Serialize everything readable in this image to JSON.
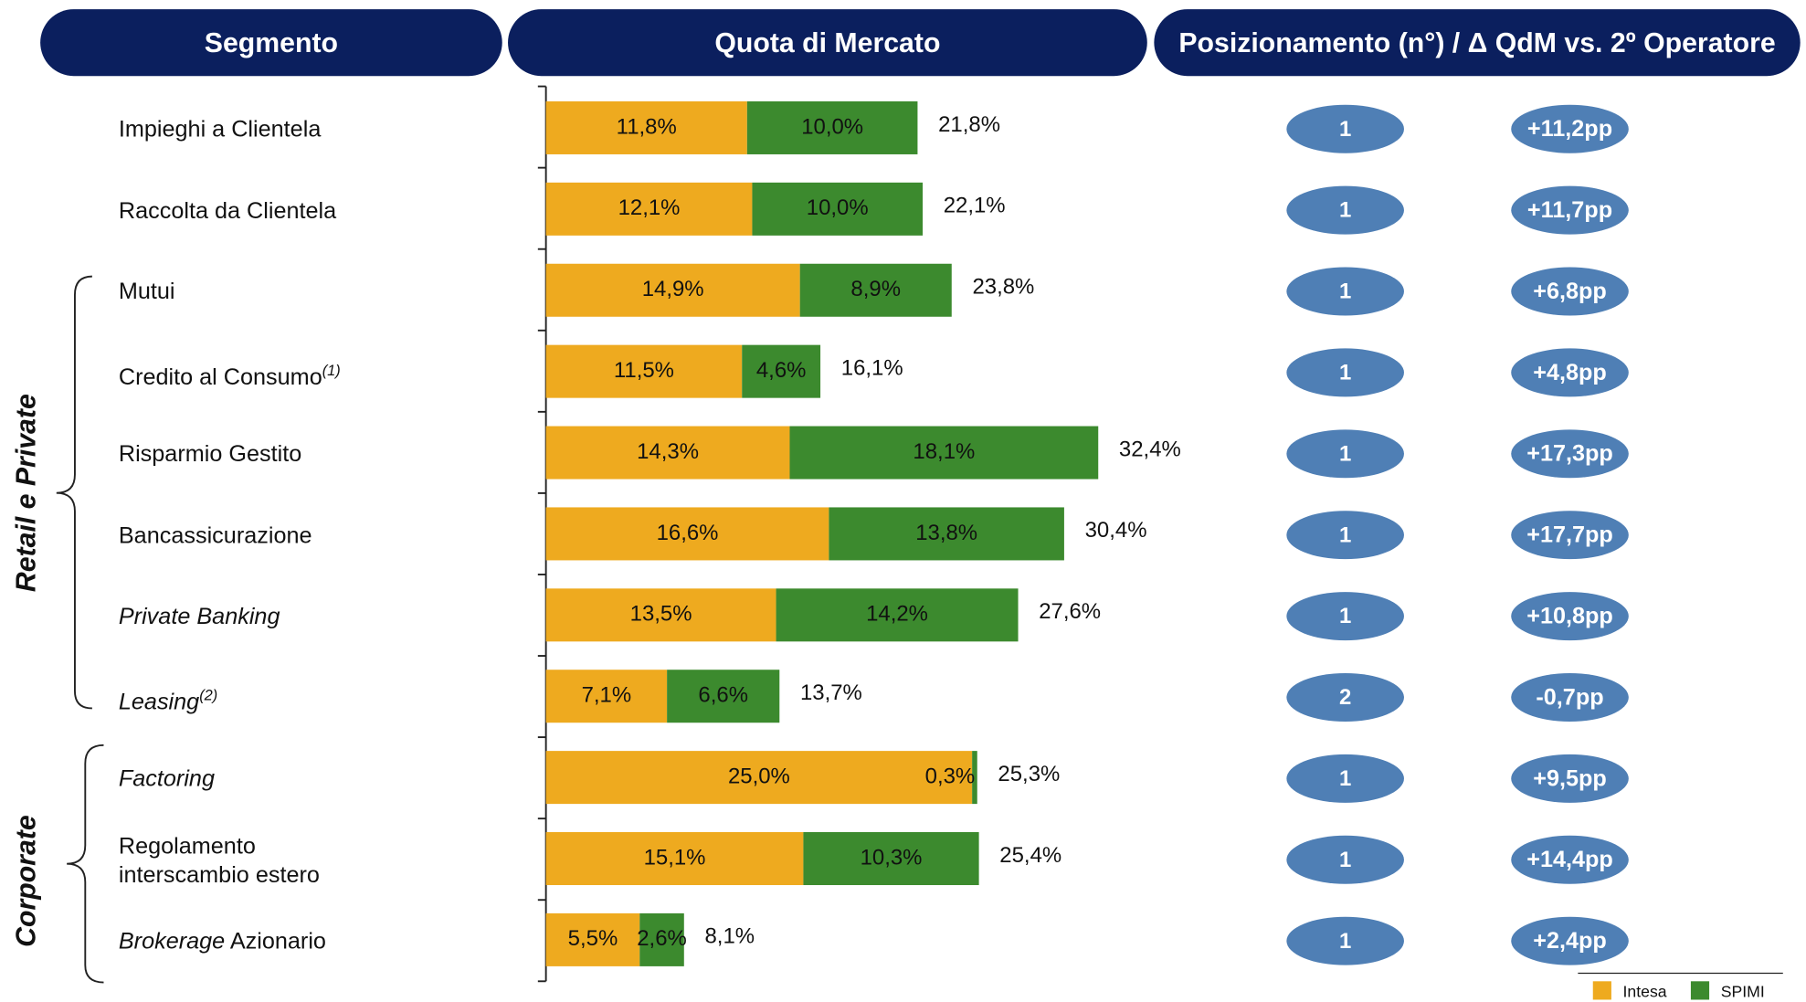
{
  "chart_data": {
    "type": "bar",
    "orientation": "horizontal",
    "stacked": true,
    "headers": [
      "Segmento",
      "Quota di Mercato",
      "Posizionamento (n°) / Δ QdM vs. 2º Operatore"
    ],
    "groups": [
      "Retail e Private",
      "Corporate"
    ],
    "categories": [
      [
        {
          "text": "Impieghi a Clientela"
        }
      ],
      [
        {
          "text": "Raccolta da Clientela"
        }
      ],
      [
        {
          "text": "Mutui"
        }
      ],
      [
        {
          "text": "Credito al Consumo"
        },
        {
          "text": "(1)",
          "style": "note"
        }
      ],
      [
        {
          "text": "Risparmio Gestito"
        }
      ],
      [
        {
          "text": "Bancassicurazione"
        }
      ],
      [
        {
          "text": "Private Banking",
          "style": "italic"
        }
      ],
      [
        {
          "text": "Leasing",
          "style": "italic"
        },
        {
          "text": "(2)",
          "style": "note"
        }
      ],
      [
        {
          "text": "Factoring",
          "style": "italic"
        }
      ],
      [
        {
          "text": "Regolamento interscambio estero"
        }
      ],
      [
        {
          "text": "Brokerage",
          "style": "italic"
        },
        {
          "text": " Azionario"
        }
      ]
    ],
    "series": [
      {
        "name": "Intesa",
        "color": "#eeaa1f",
        "values": [
          11.8,
          12.1,
          14.9,
          11.5,
          14.3,
          16.6,
          13.5,
          7.1,
          25.0,
          15.1,
          5.5
        ],
        "value_labels": [
          "11,8%",
          "12,1%",
          "14,9%",
          "11,5%",
          "14,3%",
          "16,6%",
          "13,5%",
          "7,1%",
          "25,0%",
          "15,1%",
          "5,5%"
        ]
      },
      {
        "name": "SPIMI",
        "color": "#3c8a2e",
        "values": [
          10.0,
          10.0,
          8.9,
          4.6,
          18.1,
          13.8,
          14.2,
          6.6,
          0.3,
          10.3,
          2.6
        ],
        "value_labels": [
          "10,0%",
          "10,0%",
          "8,9%",
          "4,6%",
          "18,1%",
          "13,8%",
          "14,2%",
          "6,6%",
          "0,3%",
          "10,3%",
          "2,6%"
        ]
      }
    ],
    "total_labels": [
      "21,8%",
      "22,1%",
      "23,8%",
      "16,1%",
      "32,4%",
      "30,4%",
      "27,6%",
      "13,7%",
      "25,3%",
      "25,4%",
      "8,1%"
    ],
    "positions": [
      1,
      1,
      1,
      1,
      1,
      1,
      1,
      2,
      1,
      1,
      1
    ],
    "deltas": [
      "+11,2pp",
      "+11,7pp",
      "+6,8pp",
      "+4,8pp",
      "+17,3pp",
      "+17,7pp",
      "+10,8pp",
      "-0,7pp",
      "+9,5pp",
      "+14,4pp",
      "+2,4pp"
    ],
    "xlim": [
      0,
      35
    ],
    "header_color": "#0b1f5e",
    "badge_color": "#4f7fb5"
  }
}
